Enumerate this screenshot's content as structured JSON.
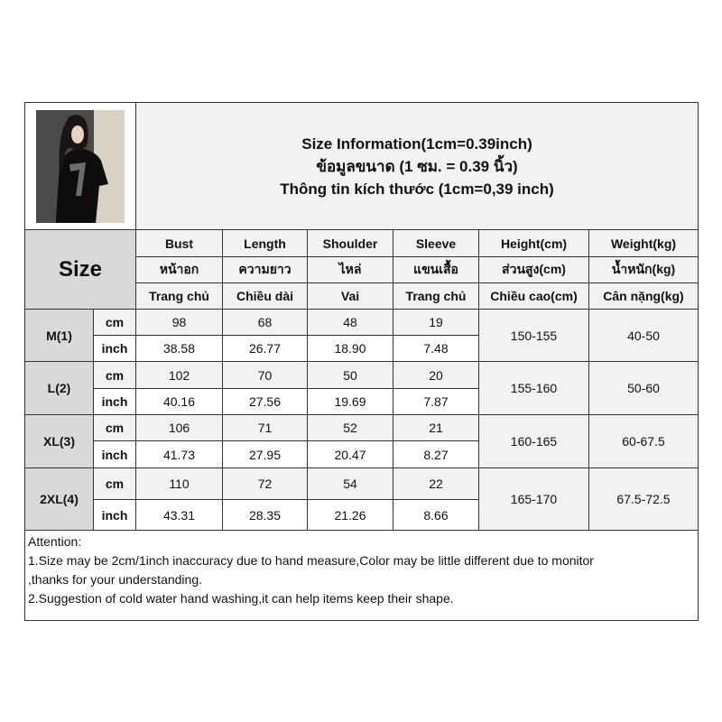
{
  "title": {
    "line1": "Size Information(1cm=0.39inch)",
    "line2": "ข้อมูลขนาด (1 ซม. = 0.39 นิ้ว)",
    "line3": "Thông tin kích thước (1cm=0,39 inch)"
  },
  "size_label": "Size",
  "columns": [
    {
      "en": "Bust",
      "th": "หน้าอก",
      "vi": "Trang chủ"
    },
    {
      "en": "Length",
      "th": "ความยาว",
      "vi": "Chiều dài"
    },
    {
      "en": "Shoulder",
      "th": "ไหล่",
      "vi": "Vai"
    },
    {
      "en": "Sleeve",
      "th": "แขนเสื้อ",
      "vi": "Trang chủ"
    },
    {
      "en": "Height(cm)",
      "th": "ส่วนสูง(cm)",
      "vi": "Chiều cao(cm)"
    },
    {
      "en": "Weight(kg)",
      "th": "น้ำหนัก(kg)",
      "vi": "Cân nặng(kg)"
    }
  ],
  "units": {
    "cm": "cm",
    "inch": "inch"
  },
  "sizes": [
    {
      "name": "M(1)",
      "cm": [
        "98",
        "68",
        "48",
        "19"
      ],
      "inch": [
        "38.58",
        "26.77",
        "18.90",
        "7.48"
      ],
      "height": "150-155",
      "weight": "40-50"
    },
    {
      "name": "L(2)",
      "cm": [
        "102",
        "70",
        "50",
        "20"
      ],
      "inch": [
        "40.16",
        "27.56",
        "19.69",
        "7.87"
      ],
      "height": "155-160",
      "weight": "50-60"
    },
    {
      "name": "XL(3)",
      "cm": [
        "106",
        "71",
        "52",
        "21"
      ],
      "inch": [
        "41.73",
        "27.95",
        "20.47",
        "8.27"
      ],
      "height": "160-165",
      "weight": "60-67.5"
    },
    {
      "name": "2XL(4)",
      "cm": [
        "110",
        "72",
        "54",
        "22"
      ],
      "inch": [
        "43.31",
        "28.35",
        "21.26",
        "8.66"
      ],
      "height": "165-170",
      "weight": "67.5-72.5"
    }
  ],
  "attention": {
    "heading": "Attention:",
    "line1": "1.Size may be 2cm/1inch inaccuracy due to hand measure,Color may be little different due to monitor",
    "line1b": ",thanks for your understanding.",
    "line2": "2.Suggestion of cold water hand washing,it can help items keep their shape."
  }
}
